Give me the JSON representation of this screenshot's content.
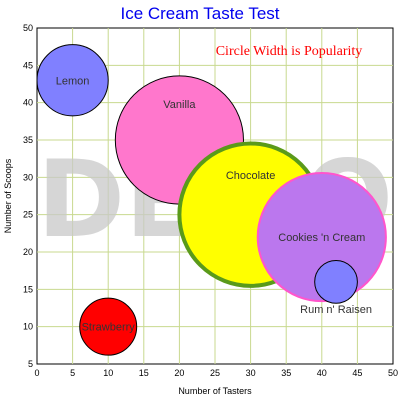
{
  "chart_data": {
    "type": "bubble",
    "title": "Ice Cream Taste Test",
    "annotation": {
      "text": "Circle Width is Popularity",
      "color": "#ff0000"
    },
    "watermark": "DEMO",
    "xlabel": "Number of Tasters",
    "ylabel": "Number of Scoops",
    "xlim": [
      0,
      50
    ],
    "ylim": [
      5,
      50
    ],
    "x_ticks": [
      0,
      5,
      10,
      15,
      20,
      25,
      30,
      35,
      40,
      45,
      50
    ],
    "y_ticks": [
      5,
      10,
      15,
      20,
      25,
      30,
      35,
      40,
      45,
      50
    ],
    "grid": true,
    "grid_color": "#c8d98f",
    "series": [
      {
        "name": "Lemon",
        "x": 5,
        "y": 43,
        "width": 10,
        "fill": "#8080ff",
        "stroke": "#000000"
      },
      {
        "name": "Vanilla",
        "x": 20,
        "y": 35,
        "width": 18,
        "fill": "#ff77cc",
        "stroke": "#000000"
      },
      {
        "name": "Chocolate",
        "x": 30,
        "y": 25,
        "width": 20,
        "fill": "#ffff00",
        "stroke": "#5a9a1a"
      },
      {
        "name": "Cookies 'n Cream",
        "x": 40,
        "y": 22,
        "width": 18,
        "fill": "#bb77ee",
        "stroke": "#ff55cc"
      },
      {
        "name": "Rum n' Raisen",
        "x": 42,
        "y": 16,
        "width": 6,
        "fill": "#8080ff",
        "stroke": "#000000"
      },
      {
        "name": "Strawberry",
        "x": 10,
        "y": 10,
        "width": 8,
        "fill": "#ff0000",
        "stroke": "#000000"
      }
    ]
  }
}
